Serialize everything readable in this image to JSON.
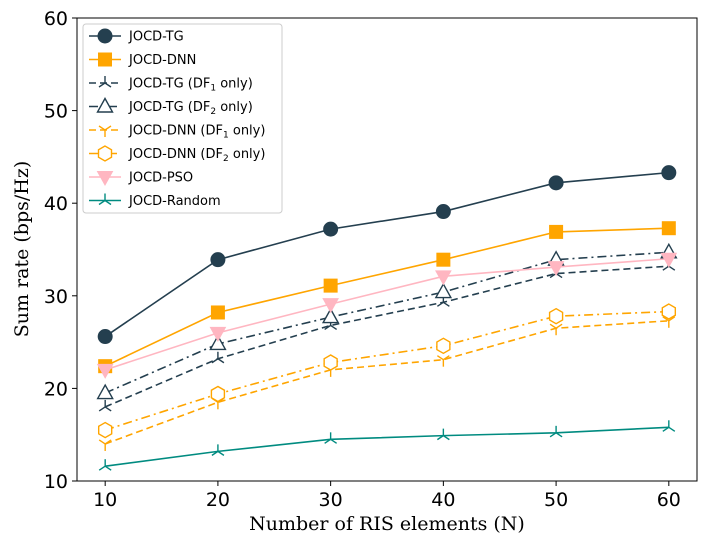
{
  "chart_data": {
    "type": "line",
    "title": "",
    "xlabel": "Number of RIS elements (N)",
    "ylabel": "Sum rate (bps/Hz)",
    "x": [
      10,
      20,
      30,
      40,
      50,
      60
    ],
    "xticks": [
      "10",
      "20",
      "30",
      "40",
      "50",
      "60"
    ],
    "xlim": [
      7.5,
      62.5
    ],
    "yticks": [
      "10",
      "20",
      "30",
      "40",
      "50",
      "60"
    ],
    "ylim": [
      10,
      60
    ],
    "grid": false,
    "legend_position": "top-left",
    "series": [
      {
        "name": "JOCD-TG",
        "label_main": "JOCD-TG",
        "label_sub": "",
        "label_tail": "",
        "color": "#243f4f",
        "dash": "solid",
        "marker": "circle",
        "values": [
          25.6,
          33.9,
          37.2,
          39.1,
          42.2,
          43.3
        ]
      },
      {
        "name": "JOCD-DNN",
        "label_main": "JOCD-DNN",
        "label_sub": "",
        "label_tail": "",
        "color": "#ffa500",
        "dash": "solid",
        "marker": "square",
        "values": [
          22.4,
          28.2,
          31.1,
          33.9,
          36.9,
          37.3
        ]
      },
      {
        "name": "JOCD-TG (DF1 only)",
        "label_main": "JOCD-TG (DF",
        "label_sub": "1",
        "label_tail": " only)",
        "color": "#243f4f",
        "dash": "dashed",
        "marker": "tri_star",
        "values": [
          18.0,
          23.2,
          26.8,
          29.3,
          32.4,
          33.2
        ]
      },
      {
        "name": "JOCD-TG (DF2 only)",
        "label_main": "JOCD-TG (DF",
        "label_sub": "2",
        "label_tail": " only)",
        "color": "#243f4f",
        "dash": "dashdot",
        "marker": "triangle",
        "values": [
          19.5,
          24.8,
          27.7,
          30.4,
          33.9,
          34.7
        ]
      },
      {
        "name": "JOCD-DNN (DF1 only)",
        "label_main": "JOCD-DNN (DF",
        "label_sub": "1",
        "label_tail": " only)",
        "color": "#ffa500",
        "dash": "dashed",
        "marker": "tri_down",
        "values": [
          14.0,
          18.5,
          22.0,
          23.1,
          26.5,
          27.3
        ]
      },
      {
        "name": "JOCD-DNN (DF2 only)",
        "label_main": "JOCD-DNN (DF",
        "label_sub": "2",
        "label_tail": " only)",
        "color": "#ffa500",
        "dash": "dashdot",
        "marker": "hexagon",
        "values": [
          15.5,
          19.4,
          22.8,
          24.6,
          27.8,
          28.3
        ]
      },
      {
        "name": "JOCD-PSO",
        "label_main": "JOCD-PSO",
        "label_sub": "",
        "label_tail": "",
        "color": "#ffb6c1",
        "dash": "solid",
        "marker": "triangle_down",
        "values": [
          22.0,
          26.0,
          29.1,
          32.1,
          33.1,
          34.0
        ]
      },
      {
        "name": "JOCD-Random",
        "label_main": "JOCD-Random",
        "label_sub": "",
        "label_tail": "",
        "color": "#008b80",
        "dash": "solid",
        "marker": "tri_star",
        "values": [
          11.6,
          13.2,
          14.5,
          14.9,
          15.2,
          15.8
        ]
      }
    ]
  }
}
